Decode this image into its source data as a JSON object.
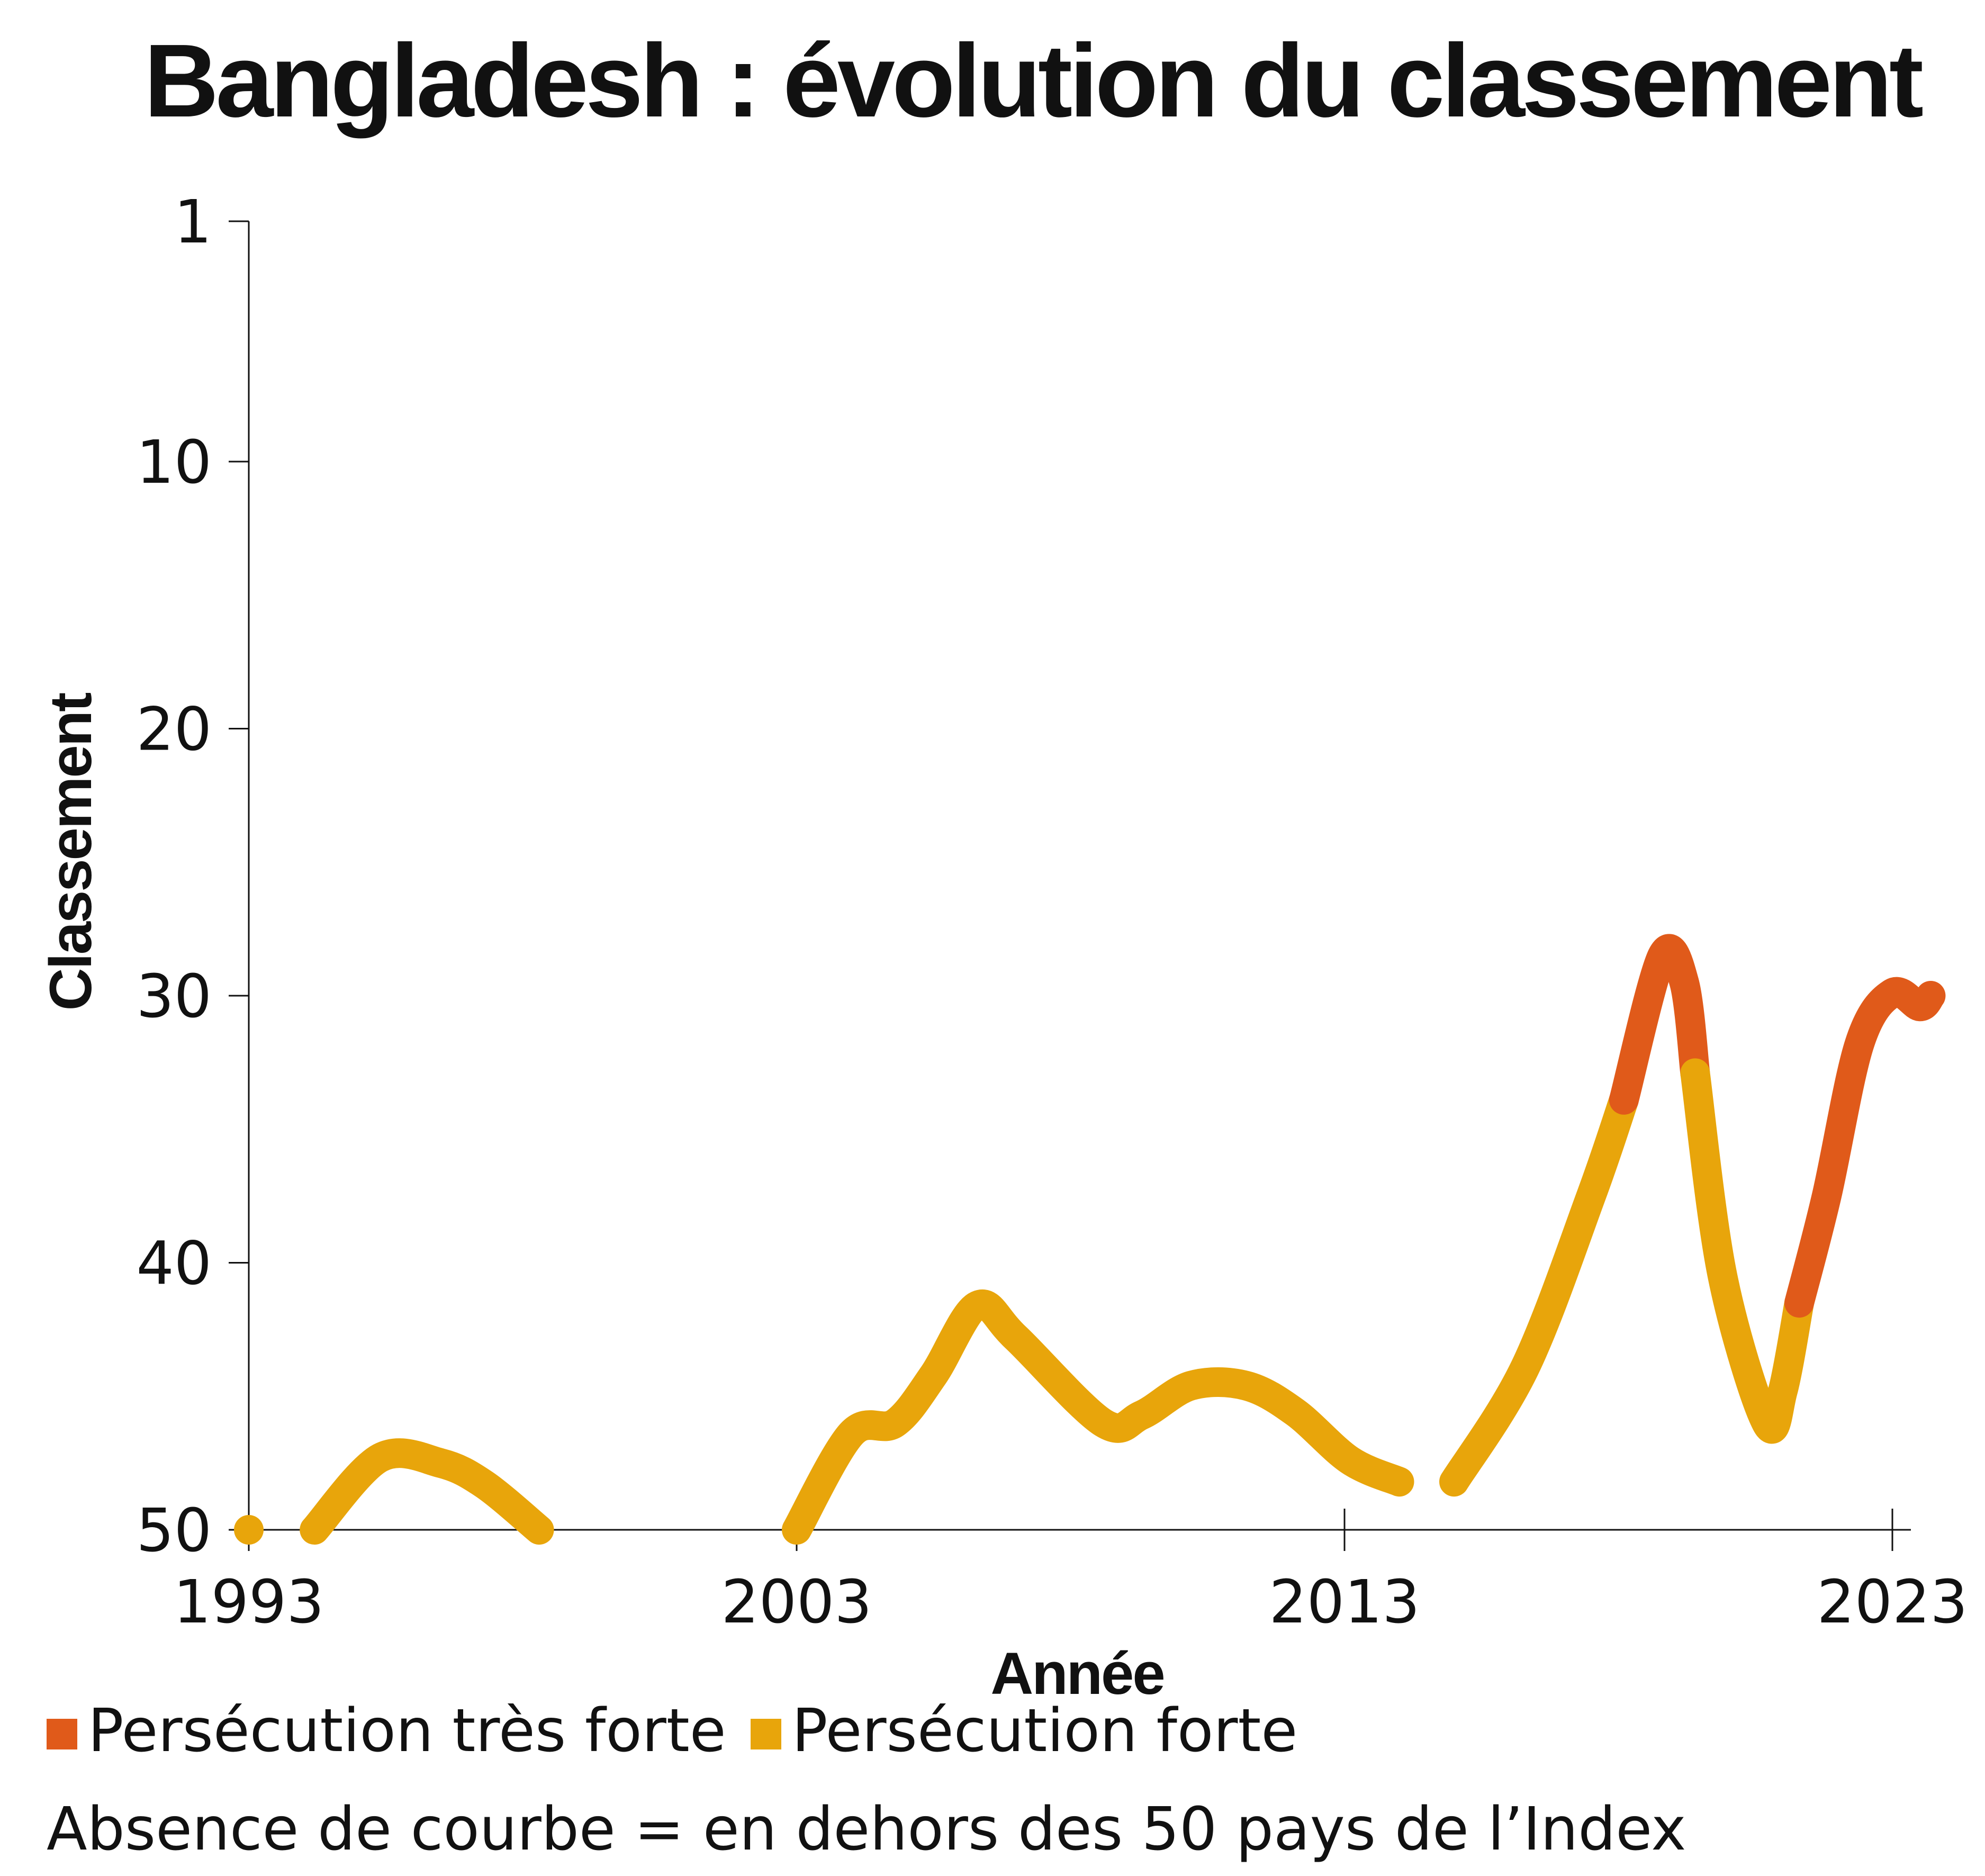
{
  "chart_data": {
    "type": "line",
    "title": "Bangladesh : évolution du classement",
    "xlabel": "Année",
    "ylabel": "Classement",
    "xlim": [
      1993,
      2023
    ],
    "ylim": [
      1,
      50
    ],
    "y_inverted": true,
    "x_ticks": [
      "1993",
      "2003",
      "2013",
      "2023"
    ],
    "y_ticks": [
      "1",
      "10",
      "20",
      "30",
      "40",
      "50"
    ],
    "grid": false,
    "legend_position": "bottom-left",
    "colors": {
      "tres_forte": "#E05A1A",
      "forte": "#E8A50B"
    },
    "segments": [
      {
        "category": "forte",
        "points": [
          [
            1993,
            50
          ]
        ]
      },
      {
        "category": "forte",
        "points": [
          [
            1994.2,
            50
          ],
          [
            1995.4,
            47.3
          ],
          [
            1996.5,
            47.5
          ],
          [
            1997.3,
            48.3
          ],
          [
            1998.3,
            50
          ]
        ]
      },
      {
        "category": "forte",
        "points": [
          [
            2003,
            50
          ],
          [
            2004,
            46.4
          ],
          [
            2004.8,
            46
          ],
          [
            2005.5,
            44.2
          ],
          [
            2006.3,
            41.6
          ],
          [
            2007,
            42.8
          ],
          [
            2008.6,
            46
          ],
          [
            2009.3,
            45.7
          ],
          [
            2010.2,
            44.6
          ],
          [
            2011.2,
            44.6
          ],
          [
            2012.1,
            45.6
          ],
          [
            2013.1,
            47.4
          ],
          [
            2014,
            48.2
          ]
        ]
      },
      {
        "category": "forte",
        "points": [
          [
            2015,
            48.2
          ],
          [
            2016.3,
            43.9
          ],
          [
            2017.5,
            37.5
          ],
          [
            2018.1,
            33.9
          ]
        ]
      },
      {
        "category": "tres_forte",
        "points": [
          [
            2018.1,
            33.9
          ],
          [
            2018.8,
            28.5
          ],
          [
            2019.2,
            29.5
          ],
          [
            2019.4,
            32.9
          ]
        ]
      },
      {
        "category": "forte",
        "points": [
          [
            2019.4,
            32.9
          ],
          [
            2019.9,
            40.5
          ],
          [
            2020.7,
            46
          ],
          [
            2021,
            44.8
          ],
          [
            2021.3,
            41.5
          ]
        ]
      },
      {
        "category": "tres_forte",
        "points": [
          [
            2021.3,
            41.5
          ],
          [
            2021.8,
            37.5
          ],
          [
            2022.4,
            31.8
          ],
          [
            2023,
            29.9
          ],
          [
            2023.5,
            30.4
          ],
          [
            2023.7,
            30
          ]
        ]
      }
    ]
  },
  "legend": [
    {
      "key": "tres_forte",
      "label": "Persécution très forte"
    },
    {
      "key": "forte",
      "label": "Persécution forte"
    }
  ],
  "note": "Absence de courbe = en dehors des 50 pays de l’Index"
}
